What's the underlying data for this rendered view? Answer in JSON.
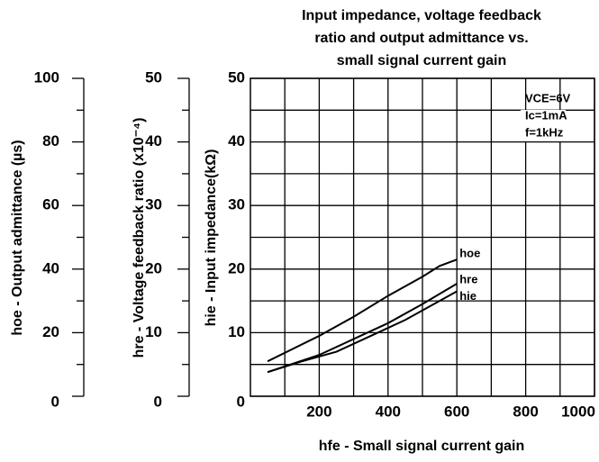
{
  "chart_data": {
    "type": "line",
    "title": [
      "Input impedance, voltage feedback",
      "ratio and output admittance vs.",
      "small signal current gain"
    ],
    "xlabel": "hfe - Small signal current gain",
    "ylabel": "hie - Input impedance(kΩ)",
    "y2label": "hre - Voltage feedback ratio (x10⁻⁴)",
    "y3label": "hoe - Output admittance (µs)",
    "conditions": [
      "VCE=6V",
      "Ic=1mA",
      "f=1kHz"
    ],
    "xlim": [
      0,
      1000
    ],
    "xticks": [
      200,
      400,
      600,
      800,
      1000
    ],
    "minor_xticks": [
      100,
      300,
      500,
      700,
      900
    ],
    "ylim": [
      0,
      50
    ],
    "yticks": [
      0,
      10,
      20,
      30,
      40,
      50
    ],
    "minor_yticks": [
      5,
      15,
      25,
      35,
      45
    ],
    "y2lim": [
      0,
      50
    ],
    "y2ticks": [
      0,
      10,
      20,
      30,
      40,
      50
    ],
    "y3lim": [
      0,
      100
    ],
    "y3ticks": [
      0,
      20,
      40,
      60,
      80,
      100
    ],
    "minor_y3ticks": [
      10,
      30,
      50,
      70,
      90
    ],
    "grid": true,
    "series": [
      {
        "name": "hoe",
        "color": "#000000",
        "axis": "y3",
        "x": [
          50,
          200,
          300,
          400,
          500,
          550,
          600
        ],
        "values": [
          11,
          19,
          25,
          31.6,
          37.6,
          41,
          43
        ]
      },
      {
        "name": "hre",
        "color": "#000000",
        "axis": "y2",
        "x": [
          50,
          200,
          300,
          400,
          500,
          600
        ],
        "values": [
          3.8,
          6.5,
          9,
          11.5,
          14.5,
          17.7
        ]
      },
      {
        "name": "hie",
        "color": "#000000",
        "axis": "y",
        "x": [
          50,
          150,
          250,
          350,
          450,
          600
        ],
        "values": [
          3.8,
          5.5,
          7,
          9.5,
          12,
          16.5
        ]
      }
    ]
  }
}
